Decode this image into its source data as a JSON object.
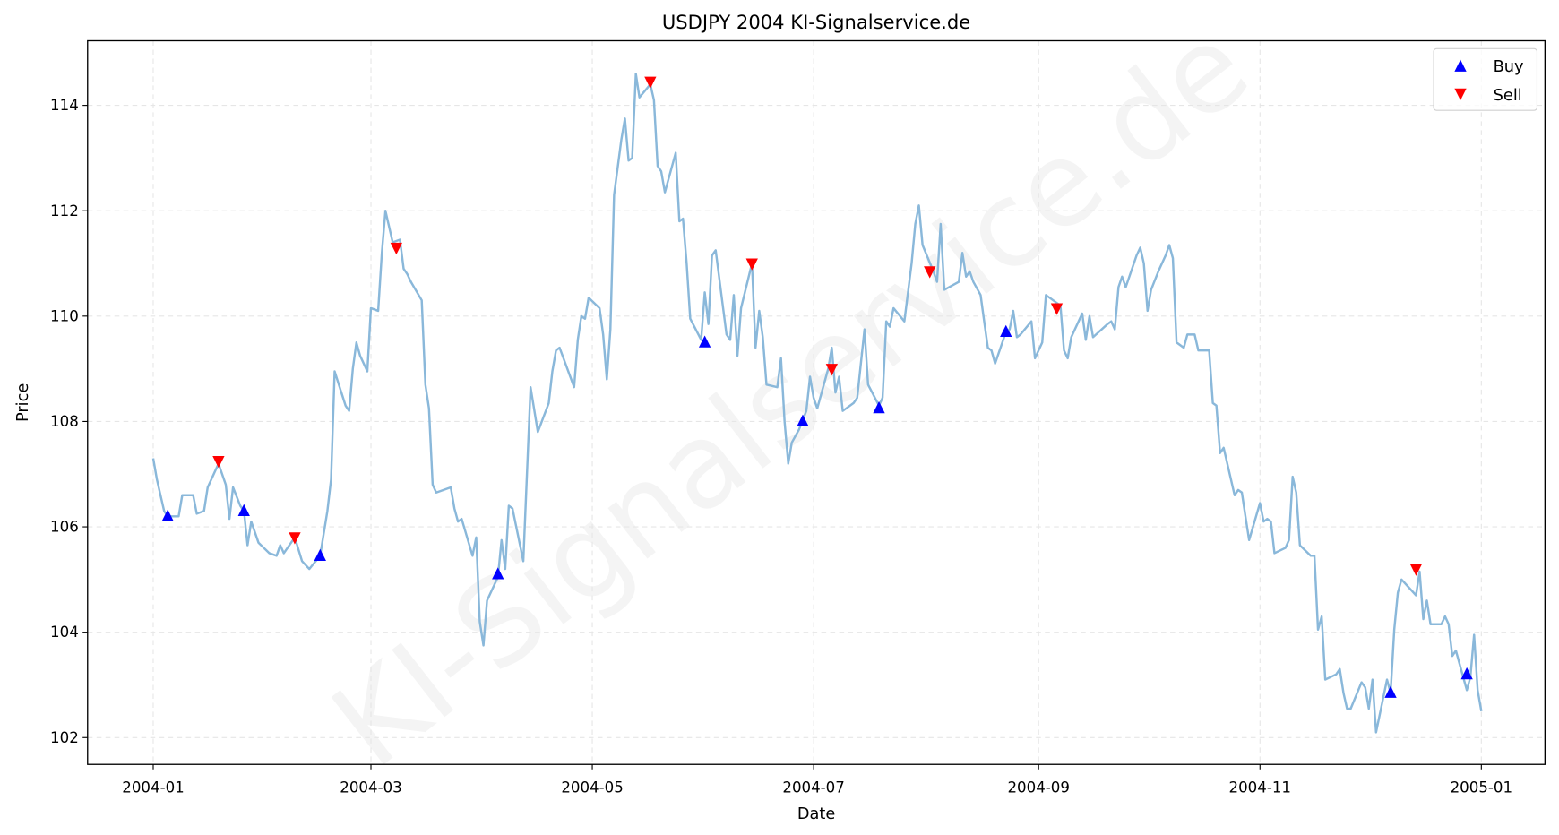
{
  "chart_data": {
    "type": "line",
    "title": "USDJPY 2004 KI-Signalservice.de",
    "xlabel": "Date",
    "ylabel": "Price",
    "watermark": "KI-Signalservice.de",
    "x_unit": "days since 2004-01-01",
    "xlim": [
      -15,
      385
    ],
    "ylim": [
      101.5,
      115.2
    ],
    "grid": true,
    "legend_position": "top-right",
    "x_ticks": [
      {
        "value": 0,
        "label": "2004-01"
      },
      {
        "value": 60,
        "label": "2004-03"
      },
      {
        "value": 121,
        "label": "2004-05"
      },
      {
        "value": 182,
        "label": "2004-07"
      },
      {
        "value": 244,
        "label": "2004-09"
      },
      {
        "value": 305,
        "label": "2004-11"
      },
      {
        "value": 366,
        "label": "2005-01"
      }
    ],
    "y_ticks": [
      {
        "value": 102,
        "label": "102"
      },
      {
        "value": 104,
        "label": "104"
      },
      {
        "value": 106,
        "label": "106"
      },
      {
        "value": 108,
        "label": "108"
      },
      {
        "value": 110,
        "label": "110"
      },
      {
        "value": 112,
        "label": "112"
      },
      {
        "value": 114,
        "label": "114"
      }
    ],
    "colors": {
      "price": "#8ab8da",
      "buy": "#0000ff",
      "sell": "#ff0000"
    },
    "series": [
      {
        "name": "Price",
        "points": [
          [
            0,
            107.3
          ],
          [
            1,
            106.9
          ],
          [
            3,
            106.3
          ],
          [
            4,
            106.2
          ],
          [
            7,
            106.2
          ],
          [
            8,
            106.6
          ],
          [
            11,
            106.6
          ],
          [
            12,
            106.25
          ],
          [
            14,
            106.3
          ],
          [
            15,
            106.75
          ],
          [
            18,
            107.2
          ],
          [
            20,
            106.8
          ],
          [
            21,
            106.15
          ],
          [
            22,
            106.75
          ],
          [
            24,
            106.4
          ],
          [
            25,
            106.3
          ],
          [
            26,
            105.65
          ],
          [
            27,
            106.1
          ],
          [
            29,
            105.7
          ],
          [
            32,
            105.5
          ],
          [
            34,
            105.45
          ],
          [
            35,
            105.65
          ],
          [
            36,
            105.5
          ],
          [
            39,
            105.8
          ],
          [
            41,
            105.35
          ],
          [
            43,
            105.2
          ],
          [
            46,
            105.45
          ],
          [
            48,
            106.3
          ],
          [
            49,
            106.9
          ],
          [
            50,
            108.95
          ],
          [
            53,
            108.3
          ],
          [
            54,
            108.2
          ],
          [
            55,
            109.0
          ],
          [
            56,
            109.5
          ],
          [
            57,
            109.25
          ],
          [
            59,
            108.95
          ],
          [
            60,
            110.15
          ],
          [
            62,
            110.1
          ],
          [
            63,
            111.2
          ],
          [
            64,
            112.0
          ],
          [
            66,
            111.4
          ],
          [
            68,
            111.45
          ],
          [
            69,
            110.9
          ],
          [
            70,
            110.8
          ],
          [
            71,
            110.65
          ],
          [
            74,
            110.3
          ],
          [
            75,
            108.7
          ],
          [
            76,
            108.25
          ],
          [
            77,
            106.8
          ],
          [
            78,
            106.65
          ],
          [
            80,
            106.7
          ],
          [
            82,
            106.75
          ],
          [
            83,
            106.35
          ],
          [
            84,
            106.1
          ],
          [
            85,
            106.15
          ],
          [
            88,
            105.45
          ],
          [
            89,
            105.8
          ],
          [
            90,
            104.2
          ],
          [
            91,
            103.75
          ],
          [
            92,
            104.6
          ],
          [
            95,
            105.05
          ],
          [
            96,
            105.75
          ],
          [
            97,
            105.2
          ],
          [
            98,
            106.4
          ],
          [
            99,
            106.35
          ],
          [
            102,
            105.35
          ],
          [
            104,
            108.65
          ],
          [
            106,
            107.8
          ],
          [
            109,
            108.35
          ],
          [
            110,
            108.95
          ],
          [
            111,
            109.35
          ],
          [
            112,
            109.4
          ],
          [
            116,
            108.65
          ],
          [
            117,
            109.55
          ],
          [
            118,
            110.0
          ],
          [
            119,
            109.95
          ],
          [
            120,
            110.35
          ],
          [
            123,
            110.15
          ],
          [
            124,
            109.65
          ],
          [
            125,
            108.8
          ],
          [
            126,
            109.75
          ],
          [
            127,
            112.3
          ],
          [
            129,
            113.35
          ],
          [
            130,
            113.75
          ],
          [
            131,
            112.95
          ],
          [
            132,
            113.0
          ],
          [
            133,
            114.6
          ],
          [
            134,
            114.15
          ],
          [
            137,
            114.4
          ],
          [
            138,
            114.1
          ],
          [
            139,
            112.85
          ],
          [
            140,
            112.75
          ],
          [
            141,
            112.35
          ],
          [
            144,
            113.1
          ],
          [
            145,
            111.8
          ],
          [
            146,
            111.85
          ],
          [
            147,
            111.0
          ],
          [
            148,
            109.95
          ],
          [
            151,
            109.55
          ],
          [
            152,
            110.45
          ],
          [
            153,
            109.85
          ],
          [
            154,
            111.15
          ],
          [
            155,
            111.25
          ],
          [
            158,
            109.65
          ],
          [
            159,
            109.55
          ],
          [
            160,
            110.4
          ],
          [
            161,
            109.25
          ],
          [
            162,
            110.15
          ],
          [
            165,
            111.0
          ],
          [
            166,
            109.4
          ],
          [
            167,
            110.1
          ],
          [
            168,
            109.6
          ],
          [
            169,
            108.7
          ],
          [
            172,
            108.65
          ],
          [
            173,
            109.2
          ],
          [
            174,
            108.0
          ],
          [
            175,
            107.2
          ],
          [
            176,
            107.6
          ],
          [
            178,
            107.85
          ],
          [
            180,
            108.2
          ],
          [
            181,
            108.85
          ],
          [
            182,
            108.45
          ],
          [
            183,
            108.25
          ],
          [
            186,
            109.0
          ],
          [
            187,
            109.4
          ],
          [
            188,
            108.55
          ],
          [
            189,
            108.85
          ],
          [
            190,
            108.2
          ],
          [
            193,
            108.35
          ],
          [
            194,
            108.45
          ],
          [
            196,
            109.75
          ],
          [
            197,
            108.7
          ],
          [
            200,
            108.3
          ],
          [
            201,
            108.45
          ],
          [
            202,
            109.9
          ],
          [
            203,
            109.8
          ],
          [
            204,
            110.15
          ],
          [
            207,
            109.9
          ],
          [
            209,
            111.0
          ],
          [
            210,
            111.75
          ],
          [
            211,
            112.1
          ],
          [
            212,
            111.35
          ],
          [
            215,
            110.85
          ],
          [
            216,
            110.65
          ],
          [
            217,
            111.75
          ],
          [
            218,
            110.5
          ],
          [
            222,
            110.65
          ],
          [
            223,
            111.2
          ],
          [
            224,
            110.75
          ],
          [
            225,
            110.85
          ],
          [
            226,
            110.65
          ],
          [
            228,
            110.4
          ],
          [
            229,
            109.9
          ],
          [
            230,
            109.4
          ],
          [
            231,
            109.35
          ],
          [
            232,
            109.1
          ],
          [
            235,
            109.7
          ],
          [
            236,
            109.75
          ],
          [
            237,
            110.1
          ],
          [
            238,
            109.6
          ],
          [
            239,
            109.65
          ],
          [
            242,
            109.9
          ],
          [
            243,
            109.2
          ],
          [
            245,
            109.5
          ],
          [
            246,
            110.4
          ],
          [
            250,
            110.2
          ],
          [
            251,
            109.35
          ],
          [
            252,
            109.2
          ],
          [
            253,
            109.6
          ],
          [
            256,
            110.05
          ],
          [
            257,
            109.55
          ],
          [
            258,
            110.0
          ],
          [
            259,
            109.6
          ],
          [
            263,
            109.85
          ],
          [
            264,
            109.9
          ],
          [
            265,
            109.75
          ],
          [
            266,
            110.55
          ],
          [
            267,
            110.75
          ],
          [
            268,
            110.55
          ],
          [
            271,
            111.15
          ],
          [
            272,
            111.3
          ],
          [
            273,
            111.0
          ],
          [
            274,
            110.1
          ],
          [
            275,
            110.5
          ],
          [
            277,
            110.85
          ],
          [
            279,
            111.15
          ],
          [
            280,
            111.35
          ],
          [
            281,
            111.1
          ],
          [
            282,
            109.5
          ],
          [
            284,
            109.4
          ],
          [
            285,
            109.65
          ],
          [
            287,
            109.65
          ],
          [
            288,
            109.35
          ],
          [
            291,
            109.35
          ],
          [
            292,
            108.35
          ],
          [
            293,
            108.3
          ],
          [
            294,
            107.4
          ],
          [
            295,
            107.5
          ],
          [
            298,
            106.6
          ],
          [
            299,
            106.7
          ],
          [
            300,
            106.65
          ],
          [
            301,
            106.2
          ],
          [
            302,
            105.75
          ],
          [
            305,
            106.45
          ],
          [
            306,
            106.1
          ],
          [
            307,
            106.15
          ],
          [
            308,
            106.1
          ],
          [
            309,
            105.5
          ],
          [
            312,
            105.6
          ],
          [
            313,
            105.75
          ],
          [
            314,
            106.95
          ],
          [
            315,
            106.65
          ],
          [
            316,
            105.65
          ],
          [
            319,
            105.45
          ],
          [
            320,
            105.45
          ],
          [
            321,
            104.05
          ],
          [
            322,
            104.3
          ],
          [
            323,
            103.1
          ],
          [
            326,
            103.2
          ],
          [
            327,
            103.3
          ],
          [
            328,
            102.85
          ],
          [
            329,
            102.55
          ],
          [
            330,
            102.55
          ],
          [
            333,
            103.05
          ],
          [
            334,
            102.95
          ],
          [
            335,
            102.55
          ],
          [
            336,
            103.1
          ],
          [
            337,
            102.1
          ],
          [
            340,
            103.1
          ],
          [
            341,
            102.85
          ],
          [
            342,
            104.05
          ],
          [
            343,
            104.75
          ],
          [
            344,
            105.0
          ],
          [
            348,
            104.7
          ],
          [
            349,
            105.15
          ],
          [
            350,
            104.25
          ],
          [
            351,
            104.6
          ],
          [
            352,
            104.15
          ],
          [
            355,
            104.15
          ],
          [
            356,
            104.3
          ],
          [
            357,
            104.15
          ],
          [
            358,
            103.55
          ],
          [
            359,
            103.65
          ],
          [
            362,
            102.9
          ],
          [
            363,
            103.15
          ],
          [
            364,
            103.95
          ],
          [
            365,
            102.9
          ],
          [
            366,
            102.5
          ]
        ]
      },
      {
        "name": "Buy",
        "points": [
          [
            4,
            106.2
          ],
          [
            25,
            106.3
          ],
          [
            46,
            105.45
          ],
          [
            95,
            105.1
          ],
          [
            152,
            109.5
          ],
          [
            179,
            108.0
          ],
          [
            200,
            108.25
          ],
          [
            235,
            109.7
          ],
          [
            341,
            102.85
          ],
          [
            362,
            103.2
          ]
        ]
      },
      {
        "name": "Sell",
        "points": [
          [
            18,
            107.25
          ],
          [
            39,
            105.8
          ],
          [
            67,
            111.3
          ],
          [
            137,
            114.45
          ],
          [
            165,
            111.0
          ],
          [
            187,
            109.0
          ],
          [
            214,
            110.85
          ],
          [
            249,
            110.15
          ],
          [
            348,
            105.2
          ]
        ]
      }
    ],
    "legend": [
      {
        "label": "Buy"
      },
      {
        "label": "Sell"
      }
    ]
  }
}
